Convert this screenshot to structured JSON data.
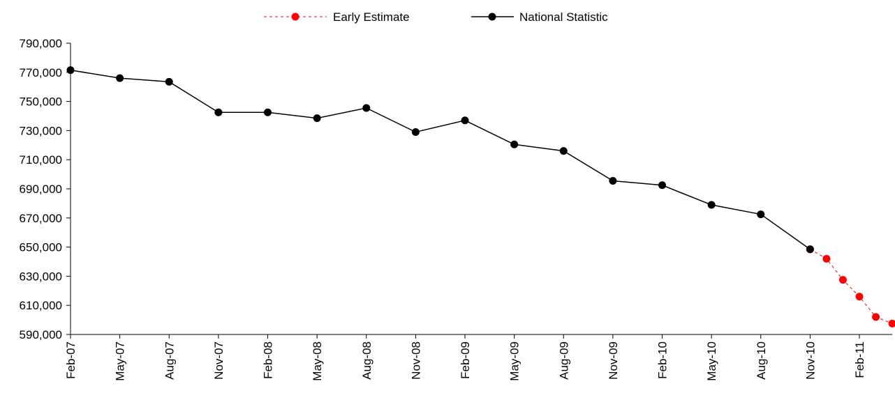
{
  "chart_data": {
    "type": "line",
    "title": "",
    "xlabel": "",
    "ylabel": "",
    "ylim": [
      590000,
      790000
    ],
    "y_ticks": [
      "590,000",
      "610,000",
      "630,000",
      "650,000",
      "670,000",
      "690,000",
      "710,000",
      "730,000",
      "750,000",
      "770,000",
      "790,000"
    ],
    "y_tick_values": [
      590000,
      610000,
      630000,
      650000,
      670000,
      690000,
      710000,
      730000,
      750000,
      770000,
      790000
    ],
    "x_ticks": [
      "Feb-07",
      "May-07",
      "Aug-07",
      "Nov-07",
      "Feb-08",
      "May-08",
      "Aug-08",
      "Nov-08",
      "Feb-09",
      "May-09",
      "Aug-09",
      "Nov-09",
      "Feb-10",
      "May-10",
      "Aug-10",
      "Nov-10",
      "Feb-11"
    ],
    "grid": false,
    "legend_position": "top-center",
    "series": [
      {
        "name": "Early Estimate",
        "color": "#ff0000",
        "line_style": "dashed",
        "x": [
          "Nov-10",
          "Dec-10",
          "Jan-11",
          "Feb-11",
          "Mar-11",
          "Apr-11"
        ],
        "values": [
          648500,
          642000,
          627500,
          616000,
          602000,
          597500
        ]
      },
      {
        "name": "National Statistic",
        "color": "#000000",
        "line_style": "solid",
        "x": [
          "Feb-07",
          "May-07",
          "Aug-07",
          "Nov-07",
          "Feb-08",
          "May-08",
          "Aug-08",
          "Nov-08",
          "Feb-09",
          "May-09",
          "Aug-09",
          "Nov-09",
          "Feb-10",
          "May-10",
          "Aug-10",
          "Nov-10"
        ],
        "values": [
          771500,
          766000,
          763500,
          742500,
          742500,
          738500,
          745500,
          729000,
          737000,
          720500,
          716000,
          695500,
          692500,
          679000,
          672500,
          648500
        ]
      }
    ]
  }
}
